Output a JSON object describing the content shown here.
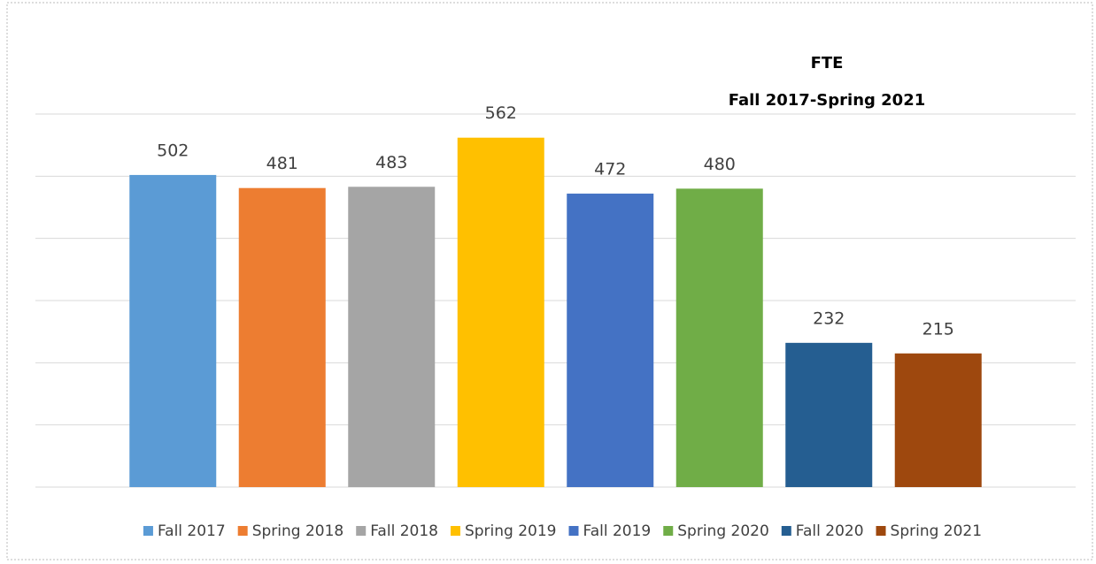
{
  "chart_data": {
    "type": "bar",
    "title": "FTE",
    "subtitle": "Fall 2017-Spring 2021",
    "categories": [
      "Fall 2017",
      "Spring 2018",
      "Fall 2018",
      "Spring 2019",
      "Fall 2019",
      "Spring 2020",
      "Fall 2020",
      "Spring 2021"
    ],
    "values": [
      502,
      481,
      483,
      562,
      472,
      480,
      232,
      215
    ],
    "colors": [
      "#5b9bd5",
      "#ed7d31",
      "#a5a5a5",
      "#ffc000",
      "#4472c4",
      "#70ad47",
      "#255e91",
      "#9e480e"
    ],
    "ylim": [
      0,
      600
    ],
    "yticks": [
      0,
      100,
      200,
      300,
      400,
      500,
      600
    ],
    "grid": true,
    "legend": "bottom"
  }
}
